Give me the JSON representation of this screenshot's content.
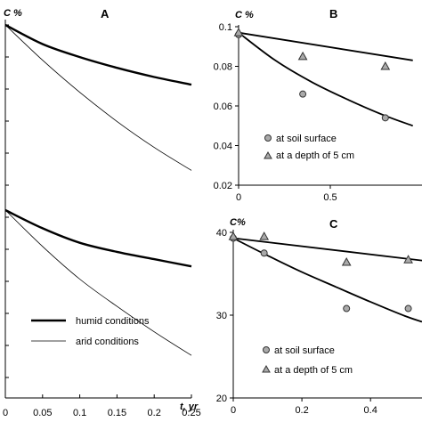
{
  "chart_data": [
    {
      "panel": "A",
      "type": "line",
      "ylabel": "C %",
      "xlabel": "t, yr",
      "xlim": [
        0,
        0.25
      ],
      "xticks": [
        "0",
        "0.05",
        "0.1",
        "0.15",
        "0.2",
        "0.25"
      ],
      "legend": [
        "humid conditions",
        "arid conditions"
      ],
      "subplots": [
        {
          "position": "upper",
          "series": [
            {
              "name": "humid conditions",
              "x": [
                0,
                0.05,
                0.1,
                0.15,
                0.2,
                0.25
              ],
              "y": [
                1.0,
                0.875,
                0.79,
                0.72,
                0.66,
                0.61
              ]
            },
            {
              "name": "arid conditions",
              "x": [
                0,
                0.05,
                0.1,
                0.15,
                0.2,
                0.25
              ],
              "y": [
                1.0,
                0.77,
                0.56,
                0.37,
                0.2,
                0.05
              ]
            }
          ]
        },
        {
          "position": "lower",
          "series": [
            {
              "name": "humid conditions",
              "x": [
                0,
                0.05,
                0.1,
                0.15,
                0.2,
                0.25
              ],
              "y": [
                1.0,
                0.9,
                0.82,
                0.77,
                0.73,
                0.69
              ]
            },
            {
              "name": "arid conditions",
              "x": [
                0,
                0.05,
                0.1,
                0.15,
                0.2,
                0.25
              ],
              "y": [
                1.0,
                0.8,
                0.62,
                0.47,
                0.33,
                0.2
              ]
            }
          ]
        }
      ]
    },
    {
      "panel": "B",
      "type": "scatter",
      "ylabel": "C %",
      "ylim": [
        0.02,
        0.1
      ],
      "yticks": [
        "0.02",
        "0.04",
        "0.06",
        "0.08",
        "0.1"
      ],
      "xlim": [
        0,
        1
      ],
      "xticks": [
        "0",
        "0.5"
      ],
      "legend": [
        "at soil surface",
        "at a depth of 5 cm"
      ],
      "series": [
        {
          "name": "at soil surface",
          "marker": "circle",
          "x": [
            0,
            0.35,
            0.8
          ],
          "y": [
            0.096,
            0.066,
            0.054
          ]
        },
        {
          "name": "at a depth of 5 cm",
          "marker": "triangle",
          "x": [
            0,
            0.35,
            0.8
          ],
          "y": [
            0.097,
            0.085,
            0.08
          ]
        }
      ],
      "fits": [
        {
          "for": "at soil surface",
          "x": [
            0,
            0.2,
            0.4,
            0.6,
            0.8,
            0.95
          ],
          "y": [
            0.097,
            0.083,
            0.072,
            0.063,
            0.055,
            0.05
          ]
        },
        {
          "for": "at a depth of 5 cm",
          "x": [
            0,
            0.95
          ],
          "y": [
            0.097,
            0.083
          ]
        }
      ]
    },
    {
      "panel": "C",
      "type": "scatter",
      "ylabel": "C%",
      "ylim": [
        20,
        40
      ],
      "yticks": [
        "20",
        "30",
        "40"
      ],
      "xlim": [
        0,
        0.55
      ],
      "xticks": [
        "0",
        "0.2",
        "0.4"
      ],
      "legend": [
        "at soil surface",
        "at a depth of 5 cm"
      ],
      "series": [
        {
          "name": "at soil surface",
          "marker": "circle",
          "x": [
            0,
            0.09,
            0.33,
            0.51
          ],
          "y": [
            39.3,
            37.5,
            30.8,
            30.8
          ]
        },
        {
          "name": "at a depth of 5 cm",
          "marker": "triangle",
          "x": [
            0,
            0.09,
            0.33,
            0.51
          ],
          "y": [
            39.5,
            39.5,
            36.4,
            36.7
          ]
        }
      ],
      "fits": [
        {
          "for": "at soil surface",
          "x": [
            0,
            0.1,
            0.2,
            0.3,
            0.4,
            0.5,
            0.55
          ],
          "y": [
            39.3,
            37.2,
            35.2,
            33.4,
            31.6,
            29.9,
            29.2
          ]
        },
        {
          "for": "at a depth of 5 cm",
          "x": [
            0,
            0.55
          ],
          "y": [
            39.3,
            36.6
          ]
        }
      ]
    }
  ]
}
